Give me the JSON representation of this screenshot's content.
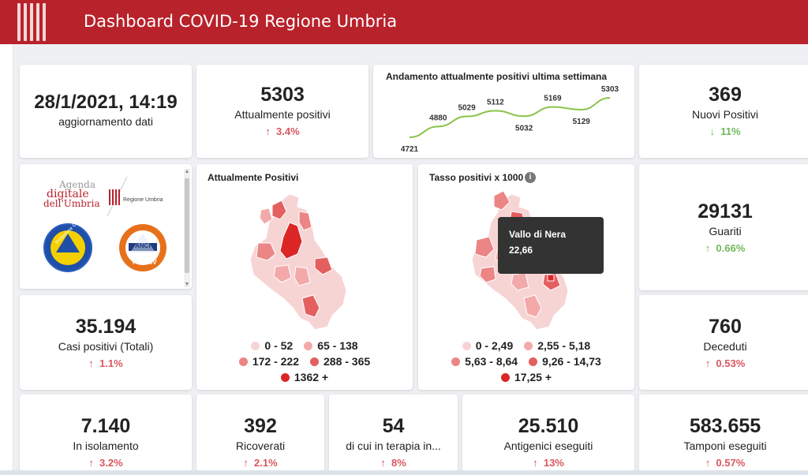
{
  "header": {
    "title": "Dashboard COVID-19 Regione Umbria",
    "logo_icon": "umbria-columns-logo"
  },
  "update": {
    "datetime": "28/1/2021, 14:19",
    "label": "aggiornamento dati"
  },
  "attualmente_positivi": {
    "value": "5303",
    "label": "Attualmente positivi",
    "change": "3.4%",
    "trend": "up"
  },
  "sparkline": {
    "title": "Andamento attualmente positivi ultima settimana",
    "chart_data": {
      "type": "line",
      "values": [
        4721,
        4880,
        5029,
        5112,
        5032,
        5169,
        5129,
        5303
      ],
      "labels": [
        "4721",
        "4880",
        "5029",
        "5112",
        "5032",
        "5169",
        "5129",
        "5303"
      ],
      "color": "#8bc34a"
    }
  },
  "nuovi_positivi": {
    "value": "369",
    "label": "Nuovi Positivi",
    "change": "11%",
    "trend": "down"
  },
  "logos": {
    "agenda_line1": "Agenda",
    "agenda_line2": "digitale",
    "agenda_line3": "dell'Umbria",
    "regione": "Regione Umbria",
    "protezione": "Protezione Civile",
    "anci": "ANCI",
    "prociv": "PROCIV"
  },
  "map_positivi": {
    "title": "Attualmente Positivi",
    "legend": [
      {
        "label": "0 - 52",
        "color": "#f7d4d4"
      },
      {
        "label": "65 - 138",
        "color": "#f3a9a9"
      },
      {
        "label": "172 - 222",
        "color": "#ec8585"
      },
      {
        "label": "288 - 365",
        "color": "#e45f5f"
      },
      {
        "label": "1362 +",
        "color": "#dc2626"
      }
    ]
  },
  "map_tasso": {
    "title": "Tasso positivi x 1000",
    "info_icon": "info-icon",
    "tooltip_name": "Vallo di Nera",
    "tooltip_value": "22,66",
    "legend": [
      {
        "label": "0 - 2,49",
        "color": "#f7d4d4"
      },
      {
        "label": "2,55 - 5,18",
        "color": "#f3a9a9"
      },
      {
        "label": "5,63 - 8,64",
        "color": "#ec8585"
      },
      {
        "label": "9,26 - 14,73",
        "color": "#e45f5f"
      },
      {
        "label": "17,25 +",
        "color": "#dc2626"
      }
    ]
  },
  "guariti": {
    "value": "29131",
    "label": "Guariti",
    "change": "0.66%",
    "trend": "up"
  },
  "casi_totali": {
    "value": "35.194",
    "label": "Casi positivi (Totali)",
    "change": "1.1%",
    "trend": "up"
  },
  "deceduti": {
    "value": "760",
    "label": "Deceduti",
    "change": "0.53%",
    "trend": "up"
  },
  "isolamento": {
    "value": "7.140",
    "label": "In isolamento",
    "change": "3.2%",
    "trend": "up"
  },
  "ricoverati": {
    "value": "392",
    "label": "Ricoverati",
    "change": "2.1%",
    "trend": "up"
  },
  "terapia": {
    "value": "54",
    "label": "di cui in terapia in...",
    "change": "8%",
    "trend": "up"
  },
  "antigenici": {
    "value": "25.510",
    "label": "Antigenici eseguiti",
    "change": "13%",
    "trend": "up"
  },
  "tamponi": {
    "value": "583.655",
    "label": "Tamponi eseguiti",
    "change": "0.57%",
    "trend": "up"
  },
  "arrows": {
    "up": "↑",
    "down": "↓"
  }
}
